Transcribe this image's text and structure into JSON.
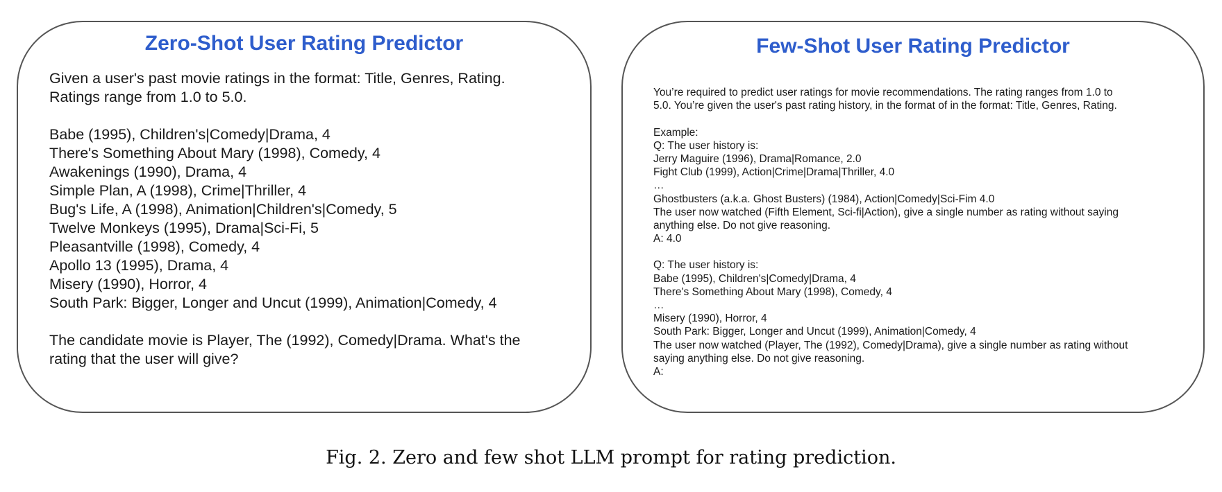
{
  "zero_shot": {
    "title": "Zero-Shot User Rating Predictor",
    "lines": [
      "Given a user's past movie ratings in the format: Title, Genres, Rating.",
      "Ratings range from 1.0 to 5.0.",
      "",
      "Babe (1995), Children's|Comedy|Drama, 4",
      "There's Something About Mary (1998), Comedy, 4",
      "Awakenings (1990), Drama, 4",
      "Simple Plan, A (1998), Crime|Thriller, 4",
      "Bug's Life, A (1998), Animation|Children's|Comedy, 5",
      "Twelve Monkeys (1995), Drama|Sci-Fi, 5",
      "Pleasantville (1998), Comedy, 4",
      "Apollo 13 (1995), Drama, 4",
      "Misery (1990), Horror, 4",
      "South Park: Bigger, Longer and Uncut (1999), Animation|Comedy, 4",
      "",
      "The candidate movie is Player, The (1992), Comedy|Drama. What's the",
      "rating that the user will give?"
    ]
  },
  "few_shot": {
    "title": "Few-Shot User Rating Predictor",
    "lines": [
      "You’re required to predict user ratings for movie recommendations. The rating ranges from 1.0 to",
      "5.0. You’re given the user's past rating history, in the format of in the format: Title, Genres, Rating.",
      "",
      "Example:",
      "Q: The user history is:",
      "Jerry Maguire (1996), Drama|Romance, 2.0",
      "Fight Club (1999), Action|Crime|Drama|Thriller, 4.0",
      "…",
      "Ghostbusters (a.k.a. Ghost Busters) (1984), Action|Comedy|Sci-Fim 4.0",
      "The user now watched (Fifth Element, Sci-fi|Action), give a single number as rating without saying",
      "anything else. Do not give reasoning.",
      "A: 4.0",
      "",
      "Q: The user history is:",
      "Babe (1995), Children's|Comedy|Drama, 4",
      "There's Something About Mary (1998), Comedy, 4",
      "…",
      "Misery (1990), Horror, 4",
      "South Park: Bigger, Longer and Uncut (1999), Animation|Comedy, 4",
      "The user now watched (Player, The (1992), Comedy|Drama), give a single number as rating without",
      "saying anything else. Do not give reasoning.",
      "A:"
    ]
  },
  "caption": "Fig. 2.  Zero and few shot LLM prompt for rating prediction.",
  "colors": {
    "title_blue": "#2e5dcc",
    "border_gray": "#555555",
    "text": "#1a1a1a"
  }
}
